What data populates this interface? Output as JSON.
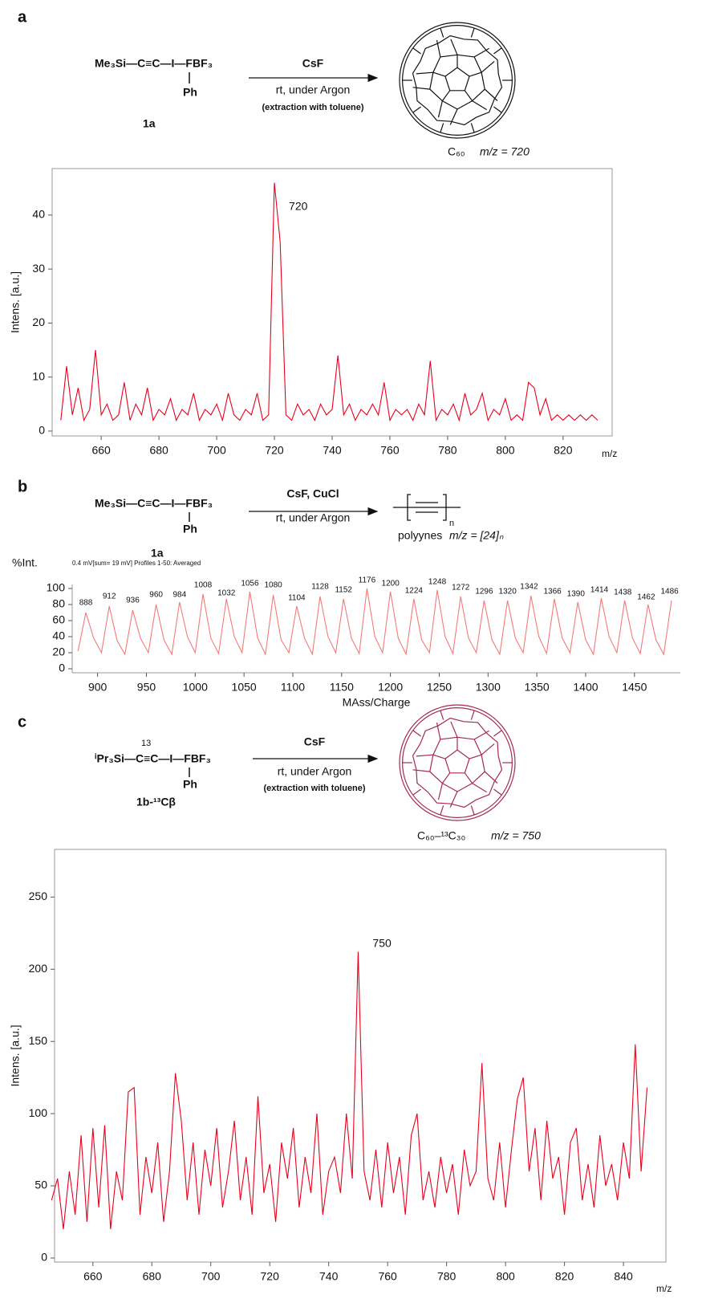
{
  "schemes": [
    {
      "panel": "a",
      "reagent": "Me₃Si—C≡C—I—FBF₃",
      "substituent": "Ph",
      "compound": "1a",
      "above_arrow": "CsF",
      "below_arrow": "rt, under Argon",
      "note": "(extraction with toluene)",
      "product": "C₆₀",
      "product_mz": "m/z = 720"
    },
    {
      "panel": "b",
      "reagent": "Me₃Si—C≡C—I—FBF₃",
      "substituent": "Ph",
      "compound": "1a",
      "above_arrow": "CsF, CuCl",
      "below_arrow": "rt, under Argon",
      "repeat": "n",
      "product": "polyynes",
      "product_mz": "m/z = [24]ₙ"
    },
    {
      "panel": "c",
      "label_13": "13",
      "reagent": "ⁱPr₃Si—C≡C—I—FBF₃",
      "substituent": "Ph",
      "compound": "1b-¹³Cβ",
      "above_arrow": "CsF",
      "below_arrow": "rt, under Argon",
      "note": "(extraction with toluene)",
      "product": "C₆₀–¹³C₃₀",
      "product_mz": "m/z = 750"
    }
  ],
  "chart_data": [
    {
      "type": "line",
      "ylabel": "Intens. [a.u.]",
      "xlabel": "m/z",
      "color": "#e8001c",
      "frame": true,
      "x": [
        646,
        648,
        650,
        652,
        654,
        656,
        658,
        660,
        662,
        664,
        666,
        668,
        670,
        672,
        674,
        676,
        678,
        680,
        682,
        684,
        686,
        688,
        690,
        692,
        694,
        696,
        698,
        700,
        702,
        704,
        706,
        708,
        710,
        712,
        714,
        716,
        718,
        720,
        722,
        724,
        726,
        728,
        730,
        732,
        734,
        736,
        738,
        740,
        742,
        744,
        746,
        748,
        750,
        752,
        754,
        756,
        758,
        760,
        762,
        764,
        766,
        768,
        770,
        772,
        774,
        776,
        778,
        780,
        782,
        784,
        786,
        788,
        790,
        792,
        794,
        796,
        798,
        800,
        802,
        804,
        806,
        808,
        810,
        812,
        814,
        816,
        818,
        820,
        822,
        824,
        826,
        828,
        830,
        832
      ],
      "values": [
        2,
        12,
        3,
        8,
        2,
        4,
        15,
        3,
        5,
        2,
        3,
        9,
        2,
        5,
        3,
        8,
        2,
        4,
        3,
        6,
        2,
        4,
        3,
        7,
        2,
        4,
        3,
        5,
        2,
        7,
        3,
        2,
        4,
        3,
        7,
        2,
        3,
        46,
        35,
        3,
        2,
        5,
        3,
        4,
        2,
        5,
        3,
        4,
        14,
        3,
        5,
        2,
        4,
        3,
        5,
        3,
        9,
        2,
        4,
        3,
        4,
        2,
        5,
        3,
        13,
        2,
        4,
        3,
        5,
        2,
        7,
        3,
        4,
        7,
        2,
        4,
        3,
        6,
        2,
        3,
        2,
        9,
        8,
        3,
        6,
        2,
        3,
        2,
        3,
        2,
        3,
        2,
        3,
        2
      ],
      "xlim": [
        643,
        837
      ],
      "ylim": [
        -0.9,
        48.6
      ],
      "xticks": [
        660,
        680,
        700,
        720,
        740,
        760,
        780,
        800,
        820
      ],
      "yticks": [
        0,
        10,
        20,
        30,
        40
      ],
      "annotations": [
        {
          "x": 720,
          "y": 40,
          "label": "720"
        }
      ]
    },
    {
      "type": "line",
      "ylabel": "%Int.",
      "xlabel": "MAss/Charge",
      "subtitle": "0.4 mV[sum= 19 mV] Profiles 1-50: Averaged",
      "color": "#f47a7a",
      "frame": false,
      "x": [
        880,
        888,
        896,
        904,
        912,
        920,
        928,
        936,
        944,
        952,
        960,
        968,
        976,
        984,
        992,
        1000,
        1008,
        1016,
        1024,
        1032,
        1040,
        1048,
        1056,
        1064,
        1072,
        1080,
        1088,
        1096,
        1104,
        1112,
        1120,
        1128,
        1136,
        1144,
        1152,
        1160,
        1168,
        1176,
        1184,
        1192,
        1200,
        1208,
        1216,
        1224,
        1232,
        1240,
        1248,
        1256,
        1264,
        1272,
        1280,
        1288,
        1296,
        1304,
        1312,
        1320,
        1328,
        1336,
        1344,
        1352,
        1360,
        1368,
        1376,
        1384,
        1392,
        1400,
        1408,
        1416,
        1424,
        1432,
        1440,
        1448,
        1456,
        1464,
        1472,
        1480,
        1488
      ],
      "values": [
        22,
        70,
        38,
        20,
        78,
        35,
        18,
        73,
        38,
        20,
        80,
        36,
        18,
        83,
        40,
        20,
        93,
        38,
        19,
        87,
        40,
        20,
        96,
        38,
        18,
        92,
        36,
        20,
        78,
        38,
        18,
        90,
        40,
        20,
        87,
        38,
        19,
        100,
        40,
        20,
        96,
        38,
        18,
        87,
        36,
        20,
        98,
        40,
        19,
        90,
        38,
        20,
        85,
        36,
        18,
        85,
        38,
        20,
        91,
        40,
        19,
        87,
        38,
        20,
        83,
        36,
        18,
        88,
        40,
        20,
        85,
        38,
        19,
        80,
        36,
        18,
        85
      ],
      "xlim": [
        874,
        1497
      ],
      "ylim": [
        -5,
        105
      ],
      "xticks": [
        900,
        950,
        1000,
        1050,
        1100,
        1150,
        1200,
        1250,
        1300,
        1350,
        1400,
        1450
      ],
      "yticks": [
        0,
        20,
        40,
        60,
        80,
        100
      ],
      "annotations": [
        {
          "x": 888,
          "y": 82,
          "label": "888"
        },
        {
          "x": 912,
          "y": 90,
          "label": "912"
        },
        {
          "x": 936,
          "y": 85,
          "label": "936"
        },
        {
          "x": 960,
          "y": 92,
          "label": "960"
        },
        {
          "x": 984,
          "y": 92,
          "label": "984"
        },
        {
          "x": 1008,
          "y": 104,
          "label": "1008"
        },
        {
          "x": 1032,
          "y": 94,
          "label": "1032"
        },
        {
          "x": 1056,
          "y": 106,
          "label": "1056"
        },
        {
          "x": 1080,
          "y": 104,
          "label": "1080"
        },
        {
          "x": 1104,
          "y": 88,
          "label": "1104"
        },
        {
          "x": 1128,
          "y": 102,
          "label": "1128"
        },
        {
          "x": 1152,
          "y": 98,
          "label": "1152"
        },
        {
          "x": 1176,
          "y": 110,
          "label": "1176"
        },
        {
          "x": 1200,
          "y": 106,
          "label": "1200"
        },
        {
          "x": 1224,
          "y": 97,
          "label": "1224"
        },
        {
          "x": 1248,
          "y": 108,
          "label": "1248"
        },
        {
          "x": 1272,
          "y": 101,
          "label": "1272"
        },
        {
          "x": 1296,
          "y": 96,
          "label": "1296"
        },
        {
          "x": 1320,
          "y": 96,
          "label": "1320"
        },
        {
          "x": 1342,
          "y": 102,
          "label": "1342"
        },
        {
          "x": 1366,
          "y": 96,
          "label": "1366"
        },
        {
          "x": 1390,
          "y": 93,
          "label": "1390"
        },
        {
          "x": 1414,
          "y": 98,
          "label": "1414"
        },
        {
          "x": 1438,
          "y": 95,
          "label": "1438"
        },
        {
          "x": 1462,
          "y": 89,
          "label": "1462"
        },
        {
          "x": 1486,
          "y": 96,
          "label": "1486"
        }
      ]
    },
    {
      "type": "line",
      "ylabel": "Intens. [a.u.]",
      "xlabel": "m/z",
      "color": "#e8001c",
      "frame": true,
      "x": [
        646,
        648,
        650,
        652,
        654,
        656,
        658,
        660,
        662,
        664,
        666,
        668,
        670,
        672,
        674,
        676,
        678,
        680,
        682,
        684,
        686,
        688,
        690,
        692,
        694,
        696,
        698,
        700,
        702,
        704,
        706,
        708,
        710,
        712,
        714,
        716,
        718,
        720,
        722,
        724,
        726,
        728,
        730,
        732,
        734,
        736,
        738,
        740,
        742,
        744,
        746,
        748,
        750,
        752,
        754,
        756,
        758,
        760,
        762,
        764,
        766,
        768,
        770,
        772,
        774,
        776,
        778,
        780,
        782,
        784,
        786,
        788,
        790,
        792,
        794,
        796,
        798,
        800,
        802,
        804,
        806,
        808,
        810,
        812,
        814,
        816,
        818,
        820,
        822,
        824,
        826,
        828,
        830,
        832,
        834,
        836,
        838,
        840,
        842,
        844,
        846,
        848
      ],
      "values": [
        40,
        55,
        20,
        60,
        30,
        85,
        25,
        90,
        35,
        92,
        20,
        60,
        40,
        115,
        118,
        30,
        70,
        45,
        80,
        25,
        60,
        128,
        95,
        40,
        80,
        30,
        75,
        50,
        90,
        35,
        60,
        95,
        40,
        70,
        30,
        112,
        45,
        65,
        25,
        80,
        55,
        90,
        35,
        70,
        45,
        100,
        30,
        60,
        70,
        45,
        100,
        55,
        212,
        60,
        40,
        75,
        35,
        80,
        45,
        70,
        30,
        85,
        100,
        40,
        60,
        35,
        70,
        45,
        65,
        30,
        75,
        50,
        60,
        135,
        55,
        40,
        80,
        35,
        75,
        110,
        125,
        60,
        90,
        40,
        95,
        55,
        70,
        30,
        80,
        90,
        40,
        65,
        35,
        85,
        50,
        65,
        40,
        80,
        55,
        148,
        60,
        118
      ],
      "xlim": [
        647,
        854.4
      ],
      "ylim": [
        -2.8,
        283
      ],
      "xticks": [
        660,
        680,
        700,
        720,
        740,
        760,
        780,
        800,
        820,
        840
      ],
      "yticks": [
        0,
        50,
        100,
        150,
        200,
        250
      ],
      "annotations": [
        {
          "x": 750,
          "y": 212,
          "label": "750"
        }
      ]
    }
  ]
}
